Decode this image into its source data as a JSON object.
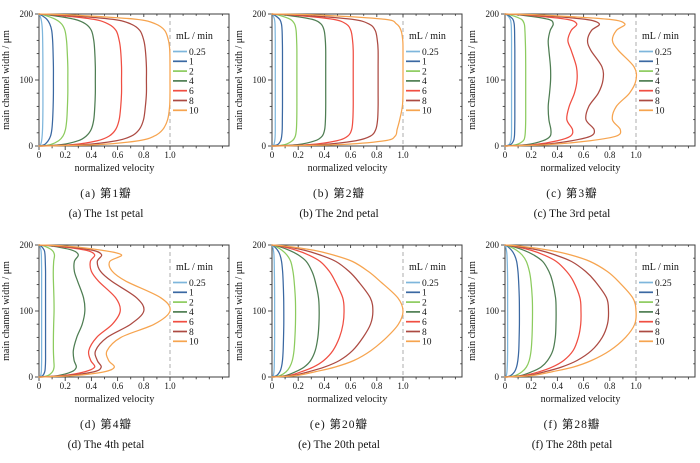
{
  "figure_title": "",
  "axes": {
    "xlabel": "normalized velocity",
    "ylabel": "main channel width / μm",
    "legend_title": "mL / min",
    "legend_position": "right-inside",
    "xticks": [
      0,
      0.2,
      0.4,
      0.6,
      0.8,
      1.0
    ],
    "xtick_labels": [
      "0",
      "0.2",
      "0.4",
      "0.6",
      "0.8",
      "1.0"
    ],
    "x_minor_step": 0.1,
    "yticks": [
      0,
      100,
      200
    ],
    "ytick_labels": [
      "0",
      "100",
      "200"
    ],
    "y_minor_step": 20,
    "xlim": [
      0,
      1.45
    ],
    "ylim": [
      0,
      200
    ],
    "refline_x": 1.0,
    "grid": "off",
    "refline_style": "dashed-gray"
  },
  "series_names": [
    "0.25",
    "1",
    "2",
    "4",
    "6",
    "8",
    "10"
  ],
  "series_colors": [
    "#7EB6DC",
    "#3A68A2",
    "#8CCB5E",
    "#4E7D52",
    "#F04E42",
    "#AC4A42",
    "#F6A44F"
  ],
  "refline_color": "#ADADAD",
  "frame_color": "#3D3D3D",
  "y_stations": [
    0,
    2,
    8,
    15,
    25,
    40,
    60,
    80,
    100,
    120,
    145,
    160,
    175,
    185,
    192,
    198,
    200
  ],
  "chart_data": [
    {
      "type": "line",
      "id": "a",
      "title_zh": "(a) 第1瓣",
      "title_en": "(a) The 1st petal",
      "xlabel": "normalized velocity",
      "ylabel": "main channel width / μm",
      "series": [
        {
          "name": "0.25",
          "x": [
            0,
            0.012,
            0.02,
            0.024,
            0.027,
            0.029,
            0.03,
            0.03,
            0.03,
            0.03,
            0.029,
            0.028,
            0.026,
            0.022,
            0.016,
            0.006,
            0
          ]
        },
        {
          "name": "1",
          "x": [
            0,
            0.04,
            0.07,
            0.088,
            0.098,
            0.104,
            0.108,
            0.11,
            0.11,
            0.11,
            0.107,
            0.104,
            0.097,
            0.082,
            0.06,
            0.02,
            0
          ]
        },
        {
          "name": "2",
          "x": [
            0,
            0.085,
            0.15,
            0.183,
            0.202,
            0.212,
            0.217,
            0.22,
            0.22,
            0.22,
            0.215,
            0.21,
            0.198,
            0.172,
            0.125,
            0.045,
            0
          ]
        },
        {
          "name": "4",
          "x": [
            0,
            0.17,
            0.3,
            0.36,
            0.398,
            0.418,
            0.426,
            0.43,
            0.43,
            0.43,
            0.425,
            0.418,
            0.4,
            0.355,
            0.27,
            0.095,
            0
          ]
        },
        {
          "name": "6",
          "x": [
            0,
            0.255,
            0.445,
            0.535,
            0.585,
            0.612,
            0.624,
            0.63,
            0.63,
            0.63,
            0.623,
            0.612,
            0.588,
            0.528,
            0.415,
            0.15,
            0
          ]
        },
        {
          "name": "8",
          "x": [
            0,
            0.34,
            0.59,
            0.705,
            0.765,
            0.798,
            0.812,
            0.82,
            0.82,
            0.82,
            0.812,
            0.8,
            0.77,
            0.7,
            0.56,
            0.21,
            0
          ]
        },
        {
          "name": "10",
          "x": [
            0,
            0.45,
            0.76,
            0.88,
            0.945,
            0.982,
            0.997,
            1.0,
            1.0,
            1.0,
            0.998,
            0.988,
            0.96,
            0.89,
            0.74,
            0.3,
            0
          ]
        }
      ]
    },
    {
      "type": "line",
      "id": "b",
      "title_zh": "(b) 第2瓣",
      "title_en": "(b) The 2nd petal",
      "xlabel": "normalized velocity",
      "ylabel": "main channel width / μm",
      "series": [
        {
          "name": "0.25",
          "x": [
            0,
            0.014,
            0.021,
            0.024,
            0.025,
            0.025,
            0.025,
            0.025,
            0.025,
            0.025,
            0.025,
            0.025,
            0.024,
            0.023,
            0.019,
            0.008,
            0
          ]
        },
        {
          "name": "1",
          "x": [
            0,
            0.042,
            0.066,
            0.074,
            0.078,
            0.079,
            0.08,
            0.08,
            0.08,
            0.08,
            0.08,
            0.079,
            0.077,
            0.072,
            0.058,
            0.022,
            0
          ]
        },
        {
          "name": "2",
          "x": [
            0,
            0.095,
            0.155,
            0.178,
            0.186,
            0.189,
            0.19,
            0.19,
            0.19,
            0.19,
            0.19,
            0.188,
            0.184,
            0.172,
            0.14,
            0.055,
            0
          ]
        },
        {
          "name": "4",
          "x": [
            0,
            0.195,
            0.33,
            0.383,
            0.402,
            0.408,
            0.41,
            0.41,
            0.41,
            0.41,
            0.41,
            0.407,
            0.398,
            0.374,
            0.305,
            0.12,
            0
          ]
        },
        {
          "name": "6",
          "x": [
            0,
            0.285,
            0.495,
            0.578,
            0.608,
            0.617,
            0.62,
            0.62,
            0.62,
            0.62,
            0.62,
            0.615,
            0.602,
            0.565,
            0.465,
            0.185,
            0
          ]
        },
        {
          "name": "8",
          "x": [
            0,
            0.365,
            0.64,
            0.752,
            0.792,
            0.806,
            0.81,
            0.81,
            0.81,
            0.81,
            0.81,
            0.804,
            0.788,
            0.74,
            0.61,
            0.245,
            0
          ]
        },
        {
          "name": "10",
          "x": [
            0,
            0.5,
            0.86,
            0.94,
            0.955,
            0.975,
            0.995,
            1.0,
            1.0,
            1.0,
            1.0,
            0.998,
            0.985,
            0.95,
            0.86,
            0.4,
            0
          ]
        }
      ]
    },
    {
      "type": "line",
      "id": "c",
      "title_zh": "(c) 第3瓣",
      "title_en": "(c) The 3rd petal",
      "xlabel": "normalized velocity",
      "ylabel": "main channel width / μm",
      "series": [
        {
          "name": "0.25",
          "x": [
            0,
            0.03,
            0.045,
            0.049,
            0.05,
            0.05,
            0.05,
            0.05,
            0.05,
            0.05,
            0.05,
            0.05,
            0.049,
            0.047,
            0.04,
            0.018,
            0
          ]
        },
        {
          "name": "1",
          "x": [
            0,
            0.042,
            0.065,
            0.072,
            0.074,
            0.075,
            0.075,
            0.075,
            0.075,
            0.075,
            0.075,
            0.074,
            0.073,
            0.07,
            0.06,
            0.025,
            0
          ]
        },
        {
          "name": "2",
          "x": [
            0,
            0.085,
            0.14,
            0.152,
            0.156,
            0.158,
            0.158,
            0.158,
            0.158,
            0.158,
            0.157,
            0.155,
            0.152,
            0.147,
            0.125,
            0.05,
            0
          ]
        },
        {
          "name": "4",
          "x": [
            0,
            0.165,
            0.29,
            0.345,
            0.35,
            0.335,
            0.33,
            0.34,
            0.348,
            0.347,
            0.335,
            0.33,
            0.345,
            0.368,
            0.33,
            0.14,
            0
          ]
        },
        {
          "name": "6",
          "x": [
            0,
            0.22,
            0.4,
            0.5,
            0.515,
            0.472,
            0.49,
            0.53,
            0.55,
            0.545,
            0.505,
            0.48,
            0.505,
            0.548,
            0.47,
            0.19,
            0
          ]
        },
        {
          "name": "8",
          "x": [
            0,
            0.27,
            0.51,
            0.655,
            0.68,
            0.618,
            0.64,
            0.712,
            0.748,
            0.74,
            0.655,
            0.63,
            0.66,
            0.72,
            0.61,
            0.25,
            0
          ]
        },
        {
          "name": "10",
          "x": [
            0,
            0.33,
            0.65,
            0.85,
            0.88,
            0.82,
            0.85,
            0.95,
            1.0,
            0.985,
            0.865,
            0.82,
            0.85,
            0.915,
            0.79,
            0.32,
            0
          ]
        }
      ]
    },
    {
      "type": "line",
      "id": "d",
      "title_zh": "(d) 第4瓣",
      "title_en": "(d) The 4th petal",
      "xlabel": "normalized velocity",
      "ylabel": "main channel width / μm",
      "series": [
        {
          "name": "0.25",
          "x": [
            0,
            0.012,
            0.018,
            0.019,
            0.02,
            0.02,
            0.02,
            0.02,
            0.02,
            0.02,
            0.02,
            0.02,
            0.019,
            0.018,
            0.015,
            0.007,
            0
          ]
        },
        {
          "name": "1",
          "x": [
            0,
            0.028,
            0.044,
            0.048,
            0.05,
            0.05,
            0.05,
            0.05,
            0.05,
            0.05,
            0.05,
            0.05,
            0.048,
            0.046,
            0.04,
            0.018,
            0
          ]
        },
        {
          "name": "2",
          "x": [
            0,
            0.065,
            0.103,
            0.115,
            0.113,
            0.11,
            0.11,
            0.112,
            0.115,
            0.114,
            0.11,
            0.109,
            0.112,
            0.118,
            0.1,
            0.045,
            0
          ]
        },
        {
          "name": "4",
          "x": [
            0,
            0.14,
            0.25,
            0.285,
            0.268,
            0.262,
            0.288,
            0.33,
            0.35,
            0.34,
            0.295,
            0.27,
            0.27,
            0.3,
            0.255,
            0.11,
            0
          ]
        },
        {
          "name": "6",
          "x": [
            0,
            0.18,
            0.35,
            0.425,
            0.395,
            0.38,
            0.44,
            0.56,
            0.62,
            0.585,
            0.455,
            0.4,
            0.392,
            0.425,
            0.36,
            0.15,
            0
          ]
        },
        {
          "name": "8",
          "x": [
            0,
            0.21,
            0.42,
            0.475,
            0.445,
            0.432,
            0.52,
            0.7,
            0.8,
            0.745,
            0.555,
            0.47,
            0.445,
            0.478,
            0.41,
            0.185,
            0
          ]
        },
        {
          "name": "10",
          "x": [
            0,
            0.26,
            0.5,
            0.575,
            0.532,
            0.52,
            0.625,
            0.88,
            1.0,
            0.93,
            0.665,
            0.56,
            0.54,
            0.63,
            0.48,
            0.23,
            0
          ]
        }
      ]
    },
    {
      "type": "line",
      "id": "e",
      "title_zh": "(e) 第20瓣",
      "title_en": "(e) The 20th petal",
      "xlabel": "normalized velocity",
      "ylabel": "main channel width / μm",
      "series": [
        {
          "name": "0.25",
          "x": [
            0,
            0.01,
            0.015,
            0.017,
            0.018,
            0.019,
            0.02,
            0.02,
            0.02,
            0.02,
            0.019,
            0.018,
            0.017,
            0.015,
            0.011,
            0.005,
            0
          ]
        },
        {
          "name": "1",
          "x": [
            0,
            0.035,
            0.06,
            0.072,
            0.08,
            0.085,
            0.088,
            0.09,
            0.09,
            0.089,
            0.085,
            0.081,
            0.073,
            0.061,
            0.043,
            0.016,
            0
          ]
        },
        {
          "name": "2",
          "x": [
            0,
            0.06,
            0.108,
            0.135,
            0.155,
            0.168,
            0.175,
            0.179,
            0.18,
            0.178,
            0.169,
            0.16,
            0.143,
            0.113,
            0.076,
            0.028,
            0
          ]
        },
        {
          "name": "4",
          "x": [
            0,
            0.1,
            0.18,
            0.245,
            0.295,
            0.33,
            0.35,
            0.358,
            0.36,
            0.355,
            0.33,
            0.305,
            0.262,
            0.2,
            0.132,
            0.048,
            0
          ]
        },
        {
          "name": "6",
          "x": [
            0,
            0.125,
            0.225,
            0.315,
            0.395,
            0.465,
            0.515,
            0.542,
            0.55,
            0.54,
            0.482,
            0.438,
            0.368,
            0.278,
            0.185,
            0.068,
            0
          ]
        },
        {
          "name": "8",
          "x": [
            0,
            0.15,
            0.28,
            0.4,
            0.515,
            0.615,
            0.695,
            0.752,
            0.77,
            0.75,
            0.658,
            0.588,
            0.488,
            0.365,
            0.248,
            0.09,
            0
          ]
        },
        {
          "name": "10",
          "x": [
            0,
            0.18,
            0.33,
            0.48,
            0.625,
            0.755,
            0.875,
            0.965,
            1.0,
            0.96,
            0.825,
            0.735,
            0.615,
            0.465,
            0.32,
            0.12,
            0
          ]
        }
      ]
    },
    {
      "type": "line",
      "id": "f",
      "title_zh": "(f) 第28瓣",
      "title_en": "(f) The 28th petal",
      "xlabel": "normalized velocity",
      "ylabel": "main channel width / μm",
      "series": [
        {
          "name": "0.25",
          "x": [
            0,
            0.01,
            0.015,
            0.017,
            0.019,
            0.02,
            0.02,
            0.02,
            0.02,
            0.02,
            0.02,
            0.019,
            0.017,
            0.015,
            0.011,
            0.005,
            0
          ]
        },
        {
          "name": "1",
          "x": [
            0,
            0.042,
            0.073,
            0.088,
            0.098,
            0.105,
            0.108,
            0.11,
            0.11,
            0.109,
            0.104,
            0.099,
            0.089,
            0.072,
            0.05,
            0.018,
            0
          ]
        },
        {
          "name": "2",
          "x": [
            0,
            0.075,
            0.13,
            0.163,
            0.185,
            0.199,
            0.206,
            0.209,
            0.21,
            0.208,
            0.198,
            0.186,
            0.163,
            0.13,
            0.088,
            0.032,
            0
          ]
        },
        {
          "name": "4",
          "x": [
            0,
            0.115,
            0.205,
            0.275,
            0.325,
            0.365,
            0.384,
            0.389,
            0.39,
            0.386,
            0.362,
            0.335,
            0.288,
            0.218,
            0.145,
            0.052,
            0
          ]
        },
        {
          "name": "6",
          "x": [
            0,
            0.14,
            0.262,
            0.36,
            0.448,
            0.52,
            0.56,
            0.578,
            0.58,
            0.572,
            0.522,
            0.47,
            0.392,
            0.295,
            0.198,
            0.072,
            0
          ]
        },
        {
          "name": "8",
          "x": [
            0,
            0.168,
            0.305,
            0.43,
            0.55,
            0.66,
            0.742,
            0.782,
            0.79,
            0.775,
            0.688,
            0.615,
            0.508,
            0.382,
            0.262,
            0.095,
            0
          ]
        },
        {
          "name": "10",
          "x": [
            0,
            0.2,
            0.36,
            0.52,
            0.66,
            0.8,
            0.92,
            0.99,
            1.0,
            0.975,
            0.865,
            0.78,
            0.65,
            0.5,
            0.34,
            0.13,
            0
          ]
        }
      ]
    }
  ]
}
